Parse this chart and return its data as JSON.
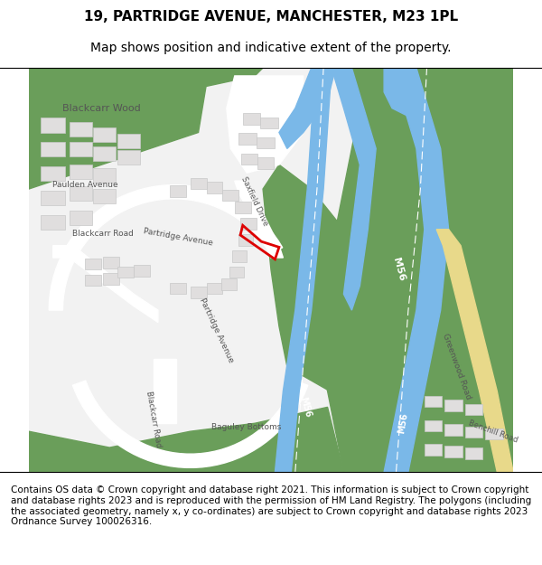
{
  "title": "19, PARTRIDGE AVENUE, MANCHESTER, M23 1PL",
  "subtitle": "Map shows position and indicative extent of the property.",
  "footer": "Contains OS data © Crown copyright and database right 2021. This information is subject to Crown copyright and database rights 2023 and is reproduced with the permission of HM Land Registry. The polygons (including the associated geometry, namely x, y co-ordinates) are subject to Crown copyright and database rights 2023 Ordnance Survey 100026316.",
  "bg_map_color": "#f2f2f2",
  "green_color": "#6a9e5a",
  "blue_road_color": "#7ab8e8",
  "white_road_color": "#ffffff",
  "building_color": "#e0dede",
  "building_edge": "#c8c8c8",
  "yellow_road": "#e8d98a",
  "red_outline": "#dd0000",
  "title_fontsize": 11,
  "subtitle_fontsize": 10,
  "footer_fontsize": 7.5
}
